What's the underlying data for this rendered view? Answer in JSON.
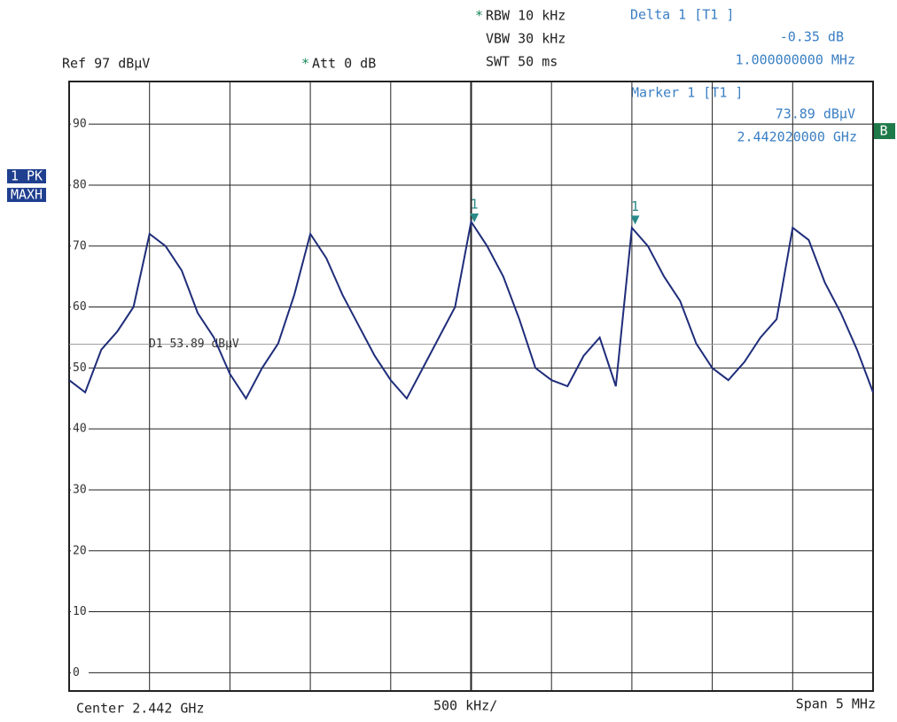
{
  "chart_data": {
    "type": "line",
    "ref_level": "Ref  97 dBµV",
    "attenuation": "Att   0 dB",
    "rbw": "RBW 10 kHz",
    "vbw": "VBW 30 kHz",
    "swt": "SWT 50 ms",
    "delta_title": "Delta 1 [T1 ]",
    "delta_level": "-0.35 dB",
    "delta_freq": "1.000000000 MHz",
    "marker_title": "Marker 1 [T1 ]",
    "marker_level": "73.89 dBµV",
    "marker_freq": "2.442020000 GHz",
    "trace_labels": [
      "1 PK",
      "MAXH"
    ],
    "badge": "B",
    "center": "Center 2.442 GHz",
    "per_division": "500 kHz/",
    "span": "Span 5 MHz",
    "display_line": {
      "label": "D1 53.89 dBµV",
      "value": 53.89
    },
    "markers": [
      {
        "label": "1",
        "x": 2.44202,
        "y": 73.89
      },
      {
        "label": "1",
        "x": 2.44302,
        "y": 73.54
      }
    ],
    "xlim": [
      2.4395,
      2.4445
    ],
    "ylim": [
      -3,
      97
    ],
    "yticks": [
      0,
      10,
      20,
      30,
      40,
      50,
      60,
      70,
      80,
      90
    ],
    "grid": true,
    "x": [
      2.4395,
      2.4396,
      2.4397,
      2.4398,
      2.4399,
      2.44,
      2.4401,
      2.4402,
      2.4403,
      2.4404,
      2.4405,
      2.4406,
      2.4407,
      2.4408,
      2.4409,
      2.441,
      2.4411,
      2.4412,
      2.4413,
      2.4414,
      2.4415,
      2.4416,
      2.4417,
      2.4418,
      2.4419,
      2.442,
      2.4421,
      2.4422,
      2.4423,
      2.4424,
      2.4425,
      2.4426,
      2.4427,
      2.4428,
      2.4429,
      2.443,
      2.4431,
      2.4432,
      2.4433,
      2.4434,
      2.4435,
      2.4436,
      2.4437,
      2.4438,
      2.4439,
      2.444,
      2.4441,
      2.4442,
      2.4443,
      2.4444,
      2.4445
    ],
    "series": [
      {
        "color": "#1f2d7a",
        "values": [
          48,
          46,
          53,
          56,
          60,
          72,
          70,
          66,
          59,
          55,
          49,
          45,
          50,
          54,
          62,
          72,
          68,
          62,
          57,
          52,
          48,
          45,
          50,
          55,
          60,
          74,
          70,
          65,
          58,
          50,
          48,
          47,
          52,
          55,
          47,
          73,
          70,
          65,
          61,
          54,
          50,
          48,
          51,
          55,
          58,
          73,
          71,
          64,
          59,
          53,
          46
        ]
      }
    ]
  }
}
